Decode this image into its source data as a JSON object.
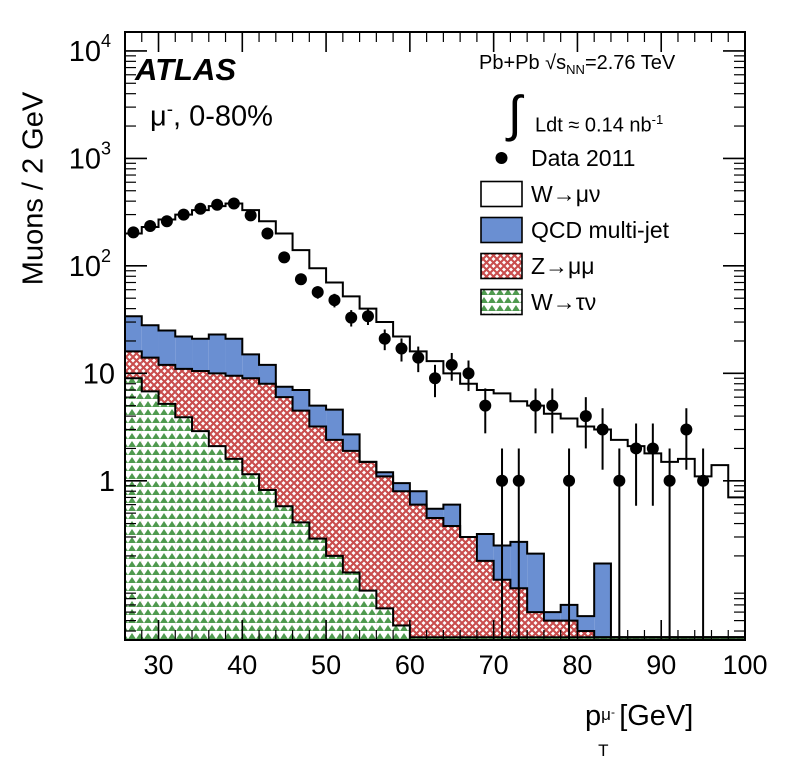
{
  "chart_data": {
    "type": "stacked-histogram",
    "xlabel": "p_T^{μ^-} [GeV]",
    "ylabel": "Muons / 2 GeV",
    "xlim": [
      26,
      100
    ],
    "ylim": [
      0.033,
      15000
    ],
    "yscale": "log",
    "xticks": [
      30,
      40,
      50,
      60,
      70,
      80,
      90,
      100
    ],
    "yticks": [
      {
        "value": 1,
        "label": "1"
      },
      {
        "value": 10,
        "label": "10"
      },
      {
        "value": 100,
        "label": "10",
        "sup": "2"
      },
      {
        "value": 1000,
        "label": "10",
        "sup": "3"
      },
      {
        "value": 10000,
        "label": "10",
        "sup": "4"
      }
    ],
    "bin_edges": [
      26,
      28,
      30,
      32,
      34,
      36,
      38,
      40,
      42,
      44,
      46,
      48,
      50,
      52,
      54,
      56,
      58,
      60,
      62,
      64,
      66,
      68,
      70,
      72,
      74,
      76,
      78,
      80,
      82,
      84,
      86,
      88,
      90,
      92,
      94,
      96,
      98,
      100
    ],
    "series": [
      {
        "name": "W→τν",
        "kind": "hatch-green",
        "values": [
          9,
          6.8,
          5.2,
          3.9,
          2.9,
          2.1,
          1.6,
          1.15,
          0.82,
          0.58,
          0.41,
          0.29,
          0.2,
          0.14,
          0.095,
          0.065,
          0.045,
          0.035,
          0.035,
          0.035,
          0.035,
          0.035,
          0.035,
          0.035,
          0.035,
          0.035,
          0.035,
          0.035,
          0.035,
          0.035,
          0.035,
          0.035,
          0.035,
          0.035,
          0.035,
          0.035,
          0.035
        ]
      },
      {
        "name": "Z→μμ",
        "kind": "hatch-red",
        "values": [
          16,
          14,
          12,
          11,
          10.5,
          10,
          9.5,
          9,
          8,
          6,
          4.5,
          3.2,
          2.4,
          1.9,
          1.5,
          1.1,
          0.8,
          0.6,
          0.45,
          0.38,
          0.3,
          0.18,
          0.12,
          0.1,
          0.06,
          0.05,
          0.05,
          0.04,
          0.035,
          0.035,
          0.035,
          0.035,
          0.035,
          0.035,
          0.035,
          0.035,
          0.035
        ]
      },
      {
        "name": "QCD multi-jet",
        "kind": "fill-blue",
        "values": [
          34,
          28,
          25,
          22,
          21,
          23,
          21,
          15,
          12,
          7.5,
          7,
          5,
          4.6,
          2.7,
          1.5,
          1.2,
          0.95,
          0.8,
          0.55,
          0.6,
          0.3,
          0.32,
          0.25,
          0.27,
          0.21,
          0.06,
          0.07,
          0.055,
          0.17,
          0.035,
          0.035,
          0.035,
          0.035,
          0.035,
          0.035,
          0.035,
          0.035
        ]
      },
      {
        "name": "W→μν",
        "kind": "outline",
        "values": [
          200,
          230,
          270,
          300,
          330,
          360,
          380,
          330,
          260,
          200,
          140,
          95,
          70,
          52,
          40,
          30,
          22,
          16,
          13,
          10,
          8,
          7,
          6.5,
          5.5,
          5,
          4.2,
          3.8,
          3.2,
          3,
          2.4,
          2.1,
          1.8,
          1.5,
          1.6,
          1.1,
          1.4,
          0.7
        ]
      }
    ],
    "data_points": [
      {
        "name": "Data 2011",
        "x": [
          27,
          29,
          31,
          33,
          35,
          37,
          39,
          41,
          43,
          45,
          47,
          49,
          51,
          53,
          55,
          57,
          59,
          61,
          63,
          65,
          67,
          69,
          71,
          73,
          75,
          77,
          79,
          81,
          83,
          85,
          87,
          89,
          91,
          93,
          95
        ],
        "y": [
          205,
          235,
          260,
          300,
          340,
          370,
          380,
          295,
          200,
          120,
          75,
          57,
          48,
          33,
          34,
          21,
          17,
          14,
          9,
          12,
          10,
          5,
          1,
          1,
          5,
          5,
          1,
          4,
          3,
          1,
          2,
          2,
          1,
          3,
          1
        ]
      }
    ]
  },
  "labels": {
    "atlas": "ATLAS",
    "channel_pre": "μ",
    "channel_sup": "-",
    "channel_post": ", 0-80%",
    "collision": "Pb+Pb",
    "energy_pre": "√s",
    "energy_sub": "NN",
    "energy_post": "=2.76 TeV",
    "lumi_pre": "Ldt ≈ 0.14 nb",
    "lumi_sup": "-1",
    "integral": "∫",
    "ylabel": "Muons / 2 GeV",
    "xlabel_p": "p",
    "xlabel_sub": "T",
    "xlabel_sup": "μ",
    "xlabel_supsup": "-",
    "xlabel_unit": " [GeV]"
  },
  "legend": [
    {
      "label": "Data 2011",
      "kind": "marker"
    },
    {
      "label": "W→μν",
      "kind": "outline"
    },
    {
      "label": "QCD multi-jet",
      "kind": "fill-blue"
    },
    {
      "label": "Z→μμ",
      "kind": "hatch-red"
    },
    {
      "label": "W→τν",
      "kind": "hatch-green"
    }
  ],
  "colors": {
    "blue": "#6a8fd2",
    "red": "#c94d4d",
    "green": "#4f9a4f",
    "axis": "#000000"
  }
}
